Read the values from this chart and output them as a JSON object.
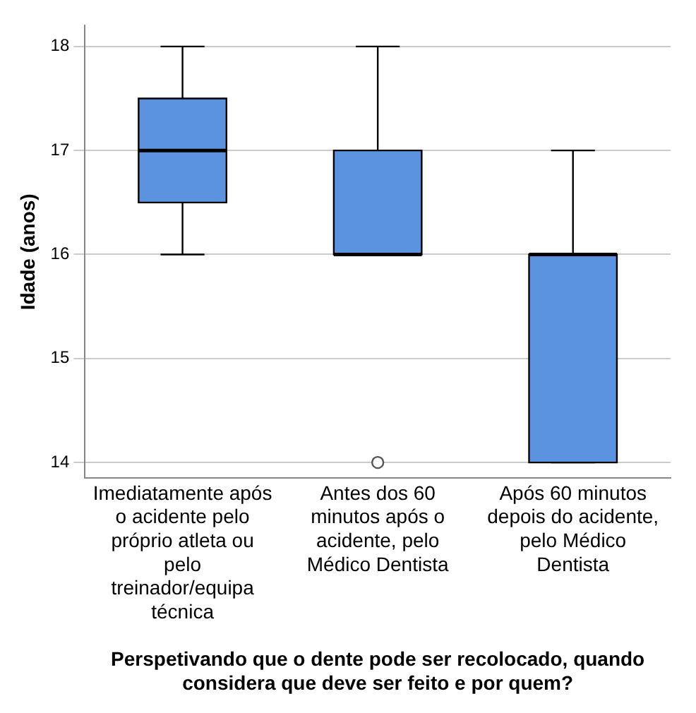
{
  "chart_data": {
    "type": "box",
    "xlabel": "Perspetivando que o dente pode ser recolocado, quando considera que deve ser feito e por quem?",
    "ylabel": "Idade (anos)",
    "categories": [
      "Imediatamente após o acidente pelo próprio atleta ou pelo treinador/equipa técnica",
      "Antes dos 60 minutos após o acidente, pelo Médico Dentista",
      "Após 60 minutos depois do acidente, pelo Médico Dentista"
    ],
    "color": "#5b93e0",
    "boxes": [
      {
        "low": 16,
        "q1": 16.5,
        "median": 17,
        "q3": 17.5,
        "high": 18
      },
      {
        "low": 16,
        "q1": 16,
        "median": 16,
        "q3": 17,
        "high": 18,
        "outliers": [
          14
        ]
      },
      {
        "low": 14,
        "q1": 14,
        "median": 16,
        "q3": 16,
        "high": 17
      }
    ],
    "ylim": [
      13.85,
      18.2
    ],
    "yticks": [
      14,
      15,
      16,
      17,
      18
    ],
    "grid": "y"
  }
}
